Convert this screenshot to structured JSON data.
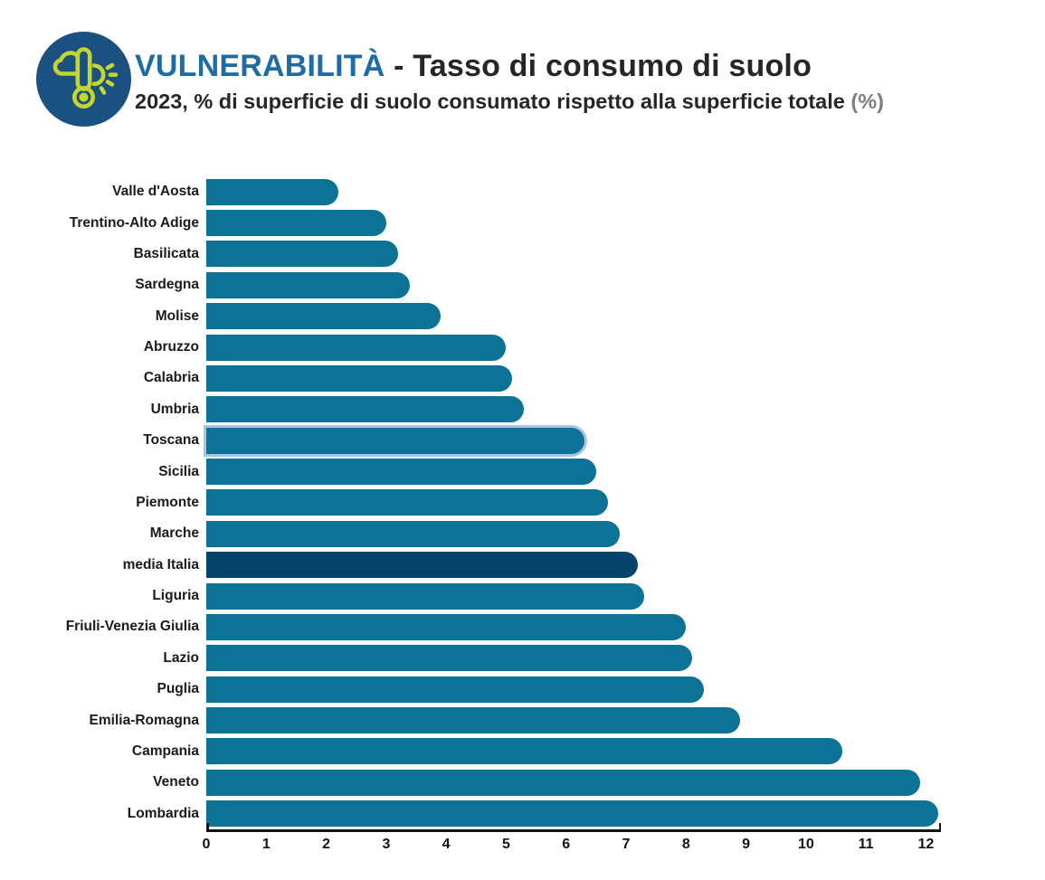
{
  "header": {
    "title_highlight": "VULNERABILITÀ",
    "title_rest": " - Tasso di consumo di suolo",
    "subtitle": "2023, % di superficie di suolo consumato rispetto alla superficie totale ",
    "subtitle_unit": "(%)"
  },
  "colors": {
    "bar": "#0d7396",
    "bar_highlight_dark": "#06436a",
    "selected_halo": "#a0bee0",
    "title_blue": "#1e6ca6",
    "text_dark": "#262626",
    "icon_circle": "#1b5181",
    "icon_glyph": "#c3d52e",
    "axis": "#141414"
  },
  "chart_data": {
    "type": "bar",
    "orientation": "horizontal",
    "title": "VULNERABILITÀ - Tasso di consumo di suolo",
    "subtitle": "2023, % di superficie di suolo consumato rispetto alla superficie totale (%)",
    "xlabel": "",
    "ylabel": "",
    "categories": [
      "Valle d'Aosta",
      "Trentino-Alto Adige",
      "Basilicata",
      "Sardegna",
      "Molise",
      "Abruzzo",
      "Calabria",
      "Umbria",
      "Toscana",
      "Sicilia",
      "Piemonte",
      "Marche",
      "media Italia",
      "Liguria",
      "Friuli-Venezia Giulia",
      "Lazio",
      "Puglia",
      "Emilia-Romagna",
      "Campania",
      "Veneto",
      "Lombardia"
    ],
    "values": [
      2.2,
      3.0,
      3.2,
      3.4,
      3.9,
      5.0,
      5.1,
      5.3,
      6.3,
      6.5,
      6.7,
      6.9,
      7.2,
      7.3,
      8.0,
      8.1,
      8.3,
      8.9,
      10.6,
      11.9,
      12.2
    ],
    "highlight_category": "media Italia",
    "selected_category": "Toscana",
    "xlim": [
      0,
      12.25
    ],
    "x_ticks": [
      0,
      1,
      2,
      3,
      4,
      5,
      6,
      7,
      8,
      9,
      10,
      11,
      12
    ],
    "grid": false,
    "legend": false,
    "bar_color": "#0d7396",
    "highlight_color": "#06436a"
  }
}
